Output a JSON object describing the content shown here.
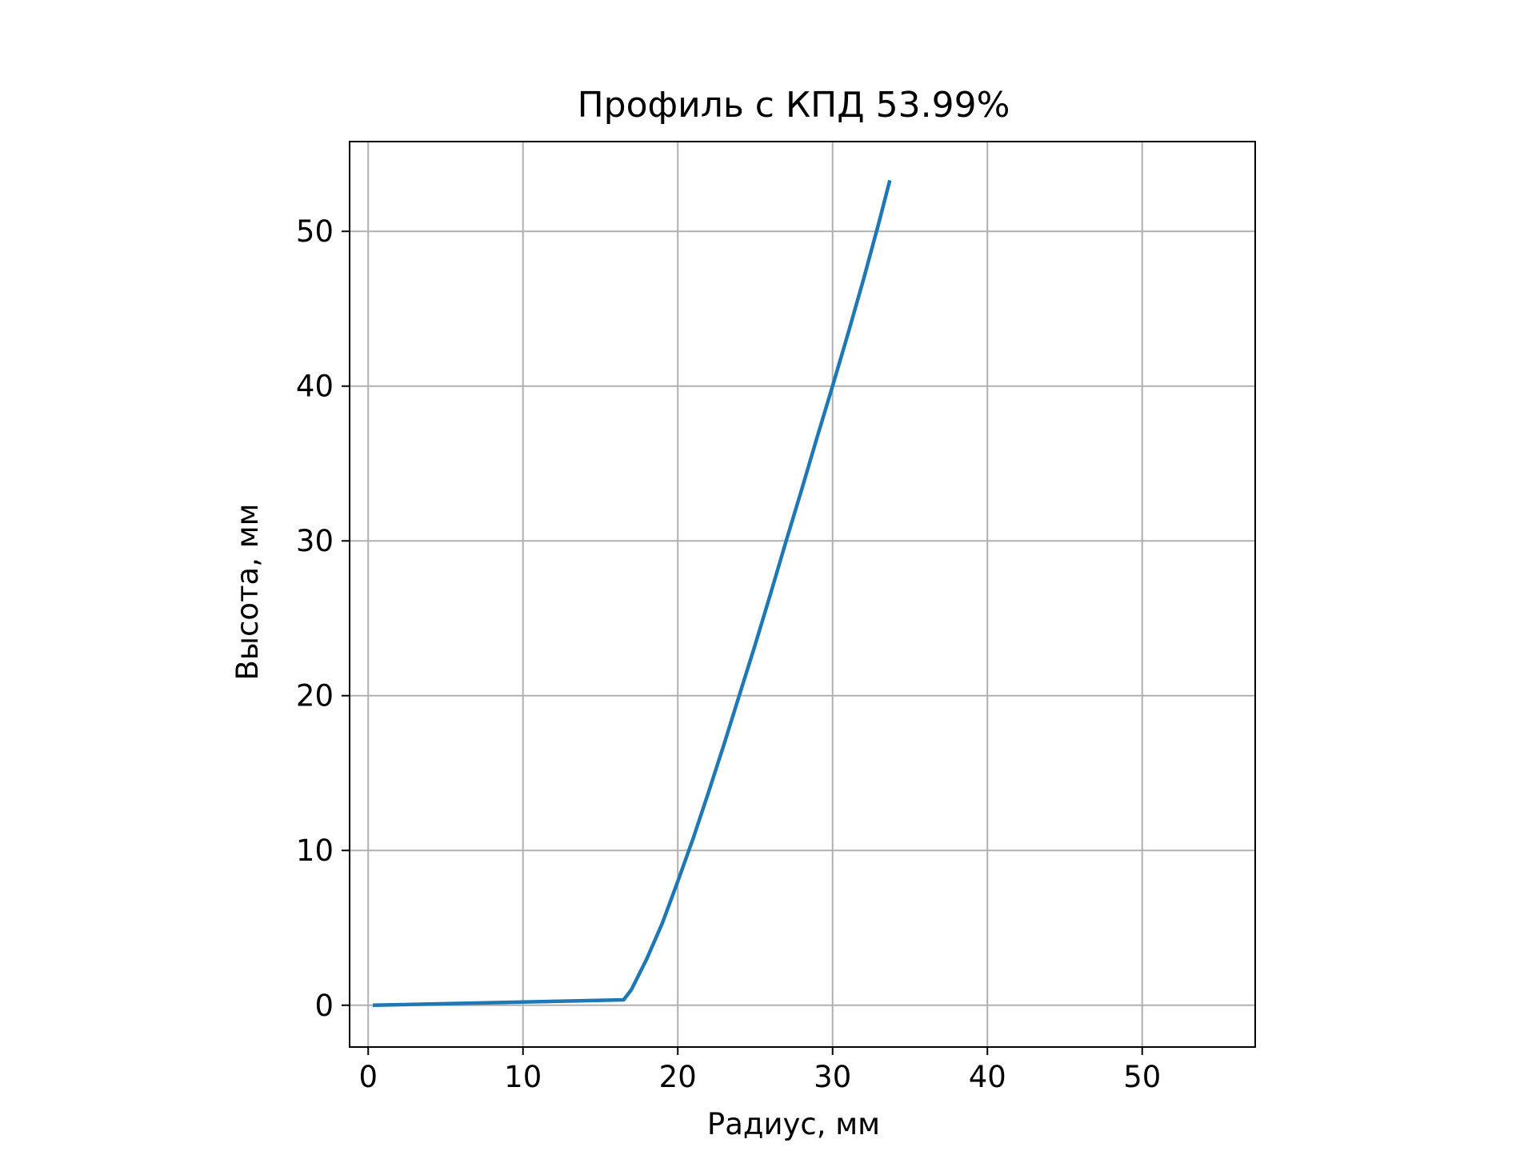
{
  "chart_data": {
    "type": "line",
    "title": "Профиль с КПД 53.99%",
    "xlabel": "Радиус, мм",
    "ylabel": "Высота, мм",
    "xlim": [
      -1.2,
      57.3
    ],
    "ylim": [
      -2.7,
      55.8
    ],
    "x_ticks": [
      0,
      10,
      20,
      30,
      40,
      50
    ],
    "y_ticks": [
      0,
      10,
      20,
      30,
      40,
      50
    ],
    "x_tick_labels": [
      "0",
      "10",
      "20",
      "30",
      "40",
      "50"
    ],
    "y_tick_labels": [
      "0",
      "10",
      "20",
      "30",
      "40",
      "50"
    ],
    "grid": true,
    "series": [
      {
        "color": "#1f77b4",
        "x": [
          0.3,
          16.5,
          17.0,
          18.0,
          19.0,
          20.0,
          21.0,
          22.0,
          23.0,
          24.0,
          25.0,
          26.0,
          27.0,
          28.0,
          29.0,
          30.0,
          31.0,
          32.0,
          33.0,
          33.7
        ],
        "y": [
          0.0,
          0.35,
          1.0,
          3.0,
          5.3,
          8.0,
          10.8,
          13.8,
          16.9,
          20.1,
          23.3,
          26.6,
          30.0,
          33.3,
          36.7,
          40.0,
          43.4,
          46.9,
          50.6,
          53.3
        ]
      }
    ]
  }
}
